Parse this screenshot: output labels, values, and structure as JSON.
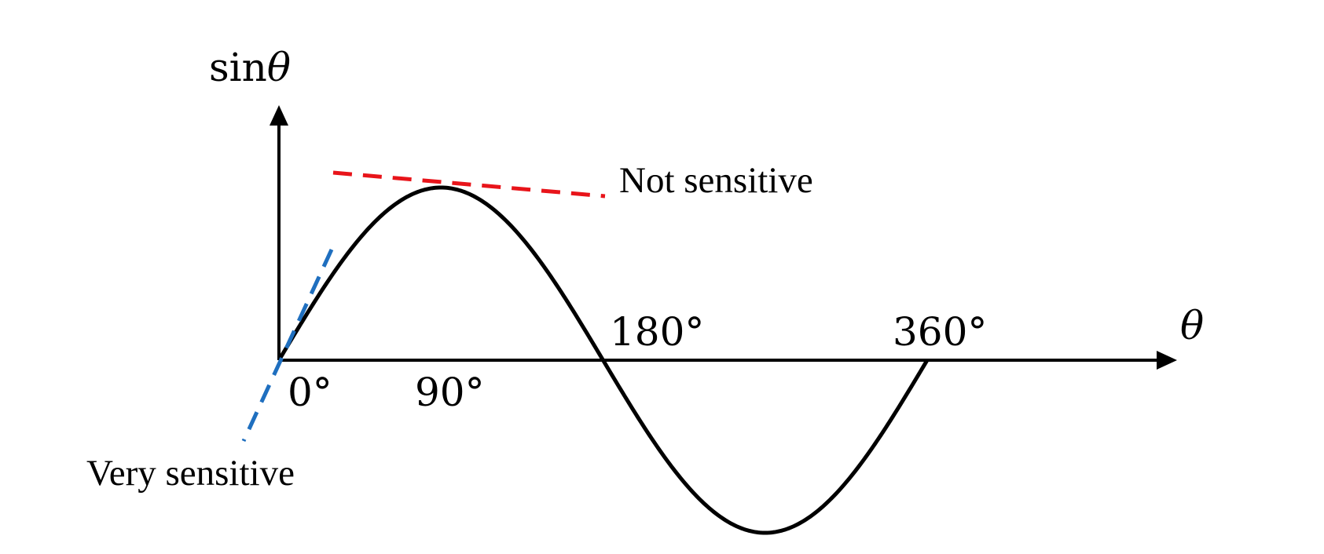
{
  "diagram": {
    "y_axis_label_prefix": "sin",
    "y_axis_label_symbol": "θ",
    "x_axis_label": "θ",
    "tick_labels": [
      "0°",
      "90°",
      "180°",
      "360°"
    ],
    "annotation_top": "Not sensitive",
    "annotation_bottom": "Very sensitive",
    "curve": {
      "function": "sin",
      "x_range_deg": [
        0,
        360
      ],
      "y_range": [
        -1,
        1
      ]
    },
    "tangents": [
      {
        "name": "Not sensitive",
        "at_deg": 90,
        "color": "#e8141a"
      },
      {
        "name": "Very sensitive",
        "at_deg": 0,
        "color": "#1f6fbf"
      }
    ],
    "colors": {
      "curve": "#000000",
      "axes": "#000000",
      "tangent_top": "#e8141a",
      "tangent_bottom": "#1f6fbf"
    }
  }
}
